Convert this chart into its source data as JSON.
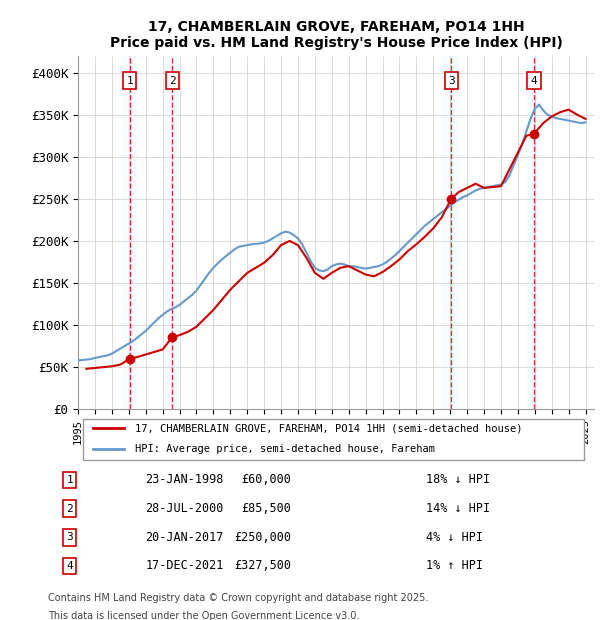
{
  "title": "17, CHAMBERLAIN GROVE, FAREHAM, PO14 1HH",
  "subtitle": "Price paid vs. HM Land Registry's House Price Index (HPI)",
  "legend_line1": "17, CHAMBERLAIN GROVE, FAREHAM, PO14 1HH (semi-detached house)",
  "legend_line2": "HPI: Average price, semi-detached house, Fareham",
  "footer1": "Contains HM Land Registry data © Crown copyright and database right 2025.",
  "footer2": "This data is licensed under the Open Government Licence v3.0.",
  "transactions": [
    {
      "num": 1,
      "date": "23-JAN-1998",
      "price": 60000,
      "hpi_diff": "18% ↓ HPI",
      "year": 1998.06
    },
    {
      "num": 2,
      "date": "28-JUL-2000",
      "price": 85500,
      "hpi_diff": "14% ↓ HPI",
      "year": 2000.57
    },
    {
      "num": 3,
      "date": "20-JAN-2017",
      "price": 250000,
      "hpi_diff": "4% ↓ HPI",
      "year": 2017.06
    },
    {
      "num": 4,
      "date": "17-DEC-2021",
      "price": 327500,
      "hpi_diff": "1% ↑ HPI",
      "year": 2021.96
    }
  ],
  "hpi_color": "#6699cc",
  "price_color": "#cc0000",
  "transaction_line_color": "#cc0000",
  "transaction_shade_color": "#ddeeff",
  "ylim": [
    0,
    420000
  ],
  "xlim_start": 1995.0,
  "xlim_end": 2025.5,
  "yticks": [
    0,
    50000,
    100000,
    150000,
    200000,
    250000,
    300000,
    350000,
    400000
  ],
  "ytick_labels": [
    "£0",
    "£50K",
    "£100K",
    "£150K",
    "£200K",
    "£250K",
    "£300K",
    "£350K",
    "£400K"
  ],
  "xticks": [
    1995,
    1996,
    1997,
    1998,
    1999,
    2000,
    2001,
    2002,
    2003,
    2004,
    2005,
    2006,
    2007,
    2008,
    2009,
    2010,
    2011,
    2012,
    2013,
    2014,
    2015,
    2016,
    2017,
    2018,
    2019,
    2020,
    2021,
    2022,
    2023,
    2024,
    2025
  ],
  "hpi_data_x": [
    1995.0,
    1995.25,
    1995.5,
    1995.75,
    1996.0,
    1996.25,
    1996.5,
    1996.75,
    1997.0,
    1997.25,
    1997.5,
    1997.75,
    1998.0,
    1998.25,
    1998.5,
    1998.75,
    1999.0,
    1999.25,
    1999.5,
    1999.75,
    2000.0,
    2000.25,
    2000.5,
    2000.75,
    2001.0,
    2001.25,
    2001.5,
    2001.75,
    2002.0,
    2002.25,
    2002.5,
    2002.75,
    2003.0,
    2003.25,
    2003.5,
    2003.75,
    2004.0,
    2004.25,
    2004.5,
    2004.75,
    2005.0,
    2005.25,
    2005.5,
    2005.75,
    2006.0,
    2006.25,
    2006.5,
    2006.75,
    2007.0,
    2007.25,
    2007.5,
    2007.75,
    2008.0,
    2008.25,
    2008.5,
    2008.75,
    2009.0,
    2009.25,
    2009.5,
    2009.75,
    2010.0,
    2010.25,
    2010.5,
    2010.75,
    2011.0,
    2011.25,
    2011.5,
    2011.75,
    2012.0,
    2012.25,
    2012.5,
    2012.75,
    2013.0,
    2013.25,
    2013.5,
    2013.75,
    2014.0,
    2014.25,
    2014.5,
    2014.75,
    2015.0,
    2015.25,
    2015.5,
    2015.75,
    2016.0,
    2016.25,
    2016.5,
    2016.75,
    2017.0,
    2017.25,
    2017.5,
    2017.75,
    2018.0,
    2018.25,
    2018.5,
    2018.75,
    2019.0,
    2019.25,
    2019.5,
    2019.75,
    2020.0,
    2020.25,
    2020.5,
    2020.75,
    2021.0,
    2021.25,
    2021.5,
    2021.75,
    2022.0,
    2022.25,
    2022.5,
    2022.75,
    2023.0,
    2023.25,
    2023.5,
    2023.75,
    2024.0,
    2024.25,
    2024.5,
    2024.75,
    2025.0
  ],
  "hpi_data_y": [
    58000,
    58500,
    59000,
    59500,
    61000,
    62000,
    63000,
    64000,
    66000,
    69000,
    72000,
    75000,
    78000,
    81000,
    85000,
    89000,
    93000,
    98000,
    103000,
    108000,
    112000,
    116000,
    119000,
    121000,
    124000,
    128000,
    132000,
    136000,
    141000,
    148000,
    155000,
    162000,
    168000,
    173000,
    178000,
    182000,
    186000,
    190000,
    193000,
    194000,
    195000,
    196000,
    196500,
    197000,
    198000,
    200000,
    203000,
    206000,
    209000,
    211000,
    210000,
    207000,
    203000,
    196000,
    186000,
    176000,
    168000,
    165000,
    164000,
    166000,
    170000,
    172000,
    173000,
    172000,
    170000,
    170000,
    169000,
    168000,
    167000,
    168000,
    169000,
    170000,
    172000,
    175000,
    179000,
    183000,
    188000,
    193000,
    198000,
    203000,
    208000,
    213000,
    218000,
    222000,
    226000,
    230000,
    234000,
    238000,
    242000,
    246000,
    249000,
    252000,
    254000,
    257000,
    260000,
    262000,
    263000,
    264000,
    265000,
    266000,
    267000,
    270000,
    278000,
    290000,
    302000,
    315000,
    330000,
    345000,
    357000,
    362000,
    355000,
    350000,
    348000,
    346000,
    345000,
    344000,
    343000,
    342000,
    341000,
    340000,
    341000
  ],
  "price_data_x": [
    1995.5,
    1996.0,
    1996.5,
    1997.0,
    1997.5,
    1998.06,
    1998.5,
    1999.0,
    1999.5,
    2000.0,
    2000.57,
    2001.0,
    2001.5,
    2002.0,
    2002.5,
    2003.0,
    2003.5,
    2004.0,
    2004.5,
    2005.0,
    2005.5,
    2006.0,
    2006.5,
    2007.0,
    2007.5,
    2008.0,
    2008.5,
    2009.0,
    2009.5,
    2010.0,
    2010.5,
    2011.0,
    2011.5,
    2012.0,
    2012.5,
    2013.0,
    2013.5,
    2014.0,
    2014.5,
    2015.0,
    2015.5,
    2016.0,
    2016.5,
    2017.06,
    2017.5,
    2018.0,
    2018.5,
    2019.0,
    2019.5,
    2020.0,
    2020.5,
    2021.0,
    2021.5,
    2021.96,
    2022.5,
    2023.0,
    2023.5,
    2024.0,
    2024.5,
    2025.0
  ],
  "price_data_y": [
    48000,
    49000,
    50000,
    51000,
    53000,
    60000,
    62000,
    65000,
    68000,
    71000,
    85500,
    88000,
    92000,
    98000,
    108000,
    118000,
    130000,
    142000,
    152000,
    162000,
    168000,
    174000,
    183000,
    195000,
    200000,
    195000,
    180000,
    162000,
    155000,
    162000,
    168000,
    170000,
    165000,
    160000,
    158000,
    163000,
    170000,
    178000,
    188000,
    196000,
    205000,
    215000,
    228000,
    250000,
    258000,
    263000,
    268000,
    263000,
    264000,
    265000,
    285000,
    305000,
    325000,
    327500,
    340000,
    348000,
    353000,
    356000,
    350000,
    345000
  ]
}
